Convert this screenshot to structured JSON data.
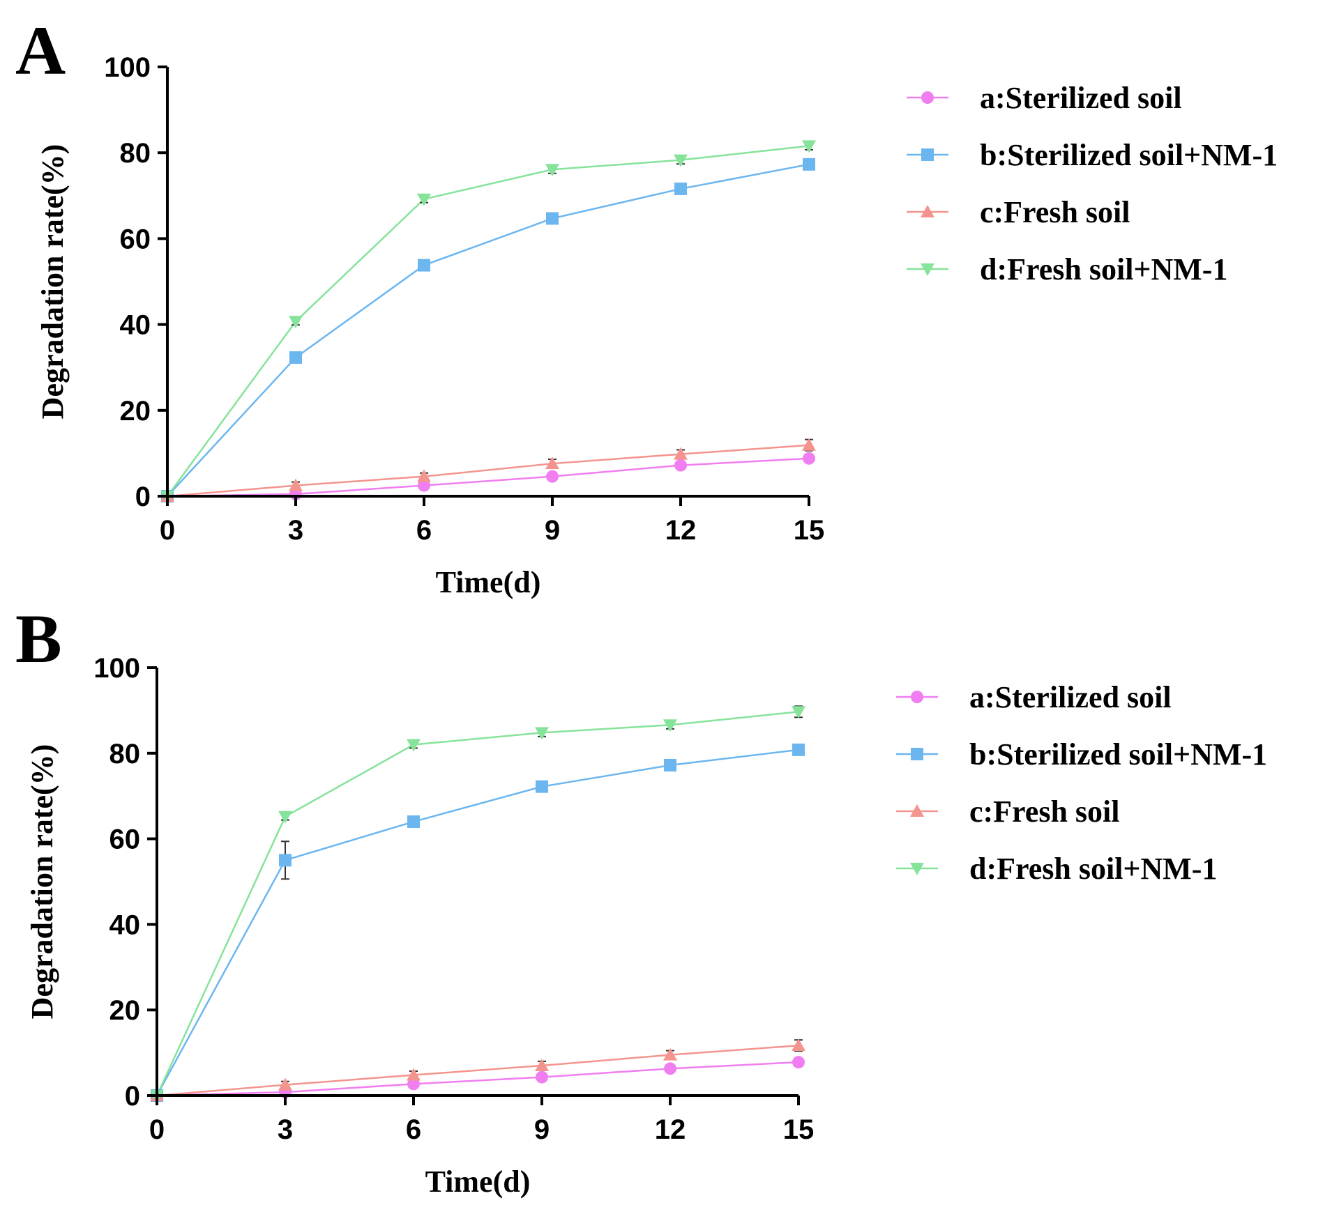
{
  "chart_data": [
    {
      "panel": "A",
      "type": "line",
      "xlabel": "Time(d)",
      "ylabel": "Degradation rate(%)",
      "xlim": [
        0,
        15
      ],
      "ylim": [
        0,
        100
      ],
      "xticks": [
        0,
        3,
        6,
        9,
        12,
        15
      ],
      "yticks": [
        0,
        20,
        40,
        60,
        80,
        100
      ],
      "x": [
        0,
        3,
        6,
        9,
        12,
        15
      ],
      "legend_position": "right",
      "series": [
        {
          "name": "a:Sterilized soil",
          "color": "#f07ef0",
          "marker": "circle",
          "values": [
            0,
            0.5,
            2.5,
            4.6,
            7.2,
            8.8
          ],
          "errors": [
            0,
            0.4,
            0.5,
            0.6,
            0.6,
            0.8
          ]
        },
        {
          "name": "b:Sterilized soil+NM-1",
          "color": "#6cb6f0",
          "marker": "square",
          "values": [
            0,
            32.3,
            53.8,
            64.7,
            71.6,
            77.3
          ],
          "errors": [
            0,
            0.8,
            0.8,
            0.8,
            0.8,
            0.8
          ]
        },
        {
          "name": "c:Fresh soil",
          "color": "#f4948e",
          "marker": "triangle-up",
          "values": [
            0,
            2.5,
            4.6,
            7.6,
            9.8,
            11.9
          ],
          "errors": [
            0,
            0.8,
            0.8,
            1.0,
            1.0,
            1.3
          ]
        },
        {
          "name": "d:Fresh soil+NM-1",
          "color": "#86e39a",
          "marker": "triangle-down",
          "values": [
            0,
            40.7,
            69.2,
            76.1,
            78.3,
            81.6
          ],
          "errors": [
            0,
            0.8,
            0.8,
            0.9,
            0.9,
            0.9
          ]
        }
      ]
    },
    {
      "panel": "B",
      "type": "line",
      "xlabel": "Time(d)",
      "ylabel": "Degradation rate(%)",
      "xlim": [
        0,
        15
      ],
      "ylim": [
        0,
        100
      ],
      "xticks": [
        0,
        3,
        6,
        9,
        12,
        15
      ],
      "yticks": [
        0,
        20,
        40,
        60,
        80,
        100
      ],
      "x": [
        0,
        3,
        6,
        9,
        12,
        15
      ],
      "legend_position": "right",
      "series": [
        {
          "name": "a:Sterilized soil",
          "color": "#f07ef0",
          "marker": "circle",
          "values": [
            0,
            0.8,
            2.7,
            4.3,
            6.3,
            7.8
          ],
          "errors": [
            0,
            0.4,
            0.5,
            0.5,
            0.6,
            0.8
          ]
        },
        {
          "name": "b:Sterilized soil+NM-1",
          "color": "#6cb6f0",
          "marker": "square",
          "values": [
            0,
            55.0,
            64.0,
            72.2,
            77.2,
            80.8
          ],
          "errors": [
            0,
            4.4,
            0.8,
            0.8,
            0.8,
            0.8
          ]
        },
        {
          "name": "c:Fresh soil",
          "color": "#f4948e",
          "marker": "triangle-up",
          "values": [
            0,
            2.5,
            4.8,
            7.0,
            9.5,
            11.7
          ],
          "errors": [
            0,
            0.8,
            0.9,
            1.0,
            1.0,
            1.3
          ]
        },
        {
          "name": "d:Fresh soil+NM-1",
          "color": "#86e39a",
          "marker": "triangle-down",
          "values": [
            0,
            65.2,
            82.0,
            84.8,
            86.6,
            89.7
          ],
          "errors": [
            0,
            0.8,
            0.8,
            0.9,
            0.9,
            1.3
          ]
        }
      ]
    }
  ]
}
